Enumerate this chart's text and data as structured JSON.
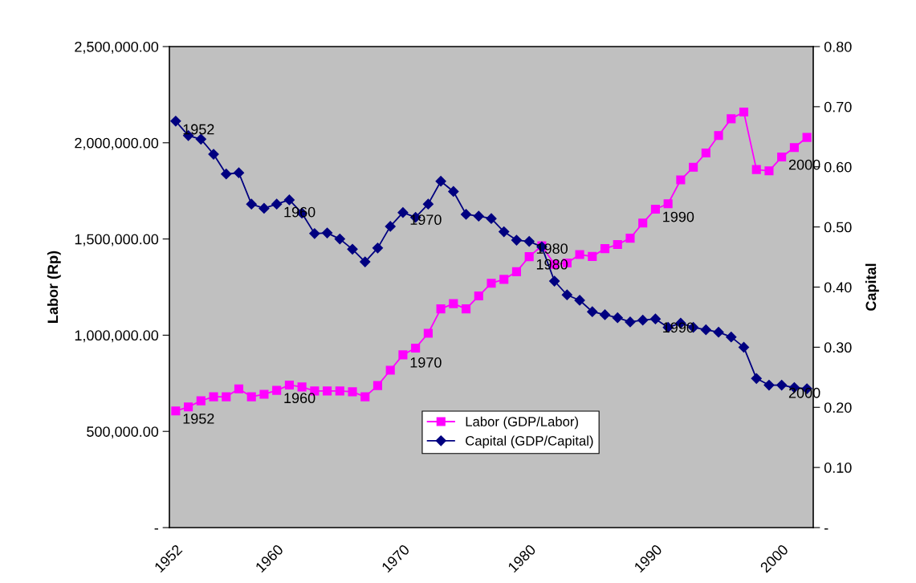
{
  "chart_data": {
    "type": "line",
    "categories": [
      "1952",
      null,
      null,
      null,
      null,
      null,
      null,
      null,
      "1960",
      null,
      null,
      null,
      null,
      null,
      null,
      null,
      null,
      null,
      "1970",
      null,
      null,
      null,
      null,
      null,
      null,
      null,
      null,
      null,
      "1980",
      null,
      null,
      null,
      null,
      null,
      null,
      null,
      null,
      null,
      "1990",
      null,
      null,
      null,
      null,
      null,
      null,
      null,
      null,
      null,
      "2000",
      null,
      null
    ],
    "ylabel": "Labor (Rp)",
    "y2label": "Capital",
    "ylim": [
      0,
      2500000
    ],
    "yticks": [
      {
        "value": 0,
        "label": "-"
      },
      {
        "value": 500000,
        "label": "500,000.00"
      },
      {
        "value": 1000000,
        "label": "1,000,000.00"
      },
      {
        "value": 1500000,
        "label": "1,500,000.00"
      },
      {
        "value": 2000000,
        "label": "2,000,000.00"
      },
      {
        "value": 2500000,
        "label": "2,500,000.00"
      }
    ],
    "y2lim": [
      0,
      0.8
    ],
    "y2ticks": [
      {
        "value": 0,
        "label": "-"
      },
      {
        "value": 0.1,
        "label": "0.10"
      },
      {
        "value": 0.2,
        "label": "0.20"
      },
      {
        "value": 0.3,
        "label": "0.30"
      },
      {
        "value": 0.4,
        "label": "0.40"
      },
      {
        "value": 0.5,
        "label": "0.50"
      },
      {
        "value": 0.6,
        "label": "0.60"
      },
      {
        "value": 0.7,
        "label": "0.70"
      },
      {
        "value": 0.8,
        "label": "0.80"
      }
    ],
    "grid": false,
    "legend": "bottom",
    "annotations": [
      {
        "text": "1952",
        "x": "1952",
        "y": 606000
      },
      {
        "text": "1960",
        "x": "1960",
        "y": 713000
      },
      {
        "text": "1970",
        "x": "1970",
        "y": 898000
      },
      {
        "text": "1980",
        "x": "1980",
        "y": 1408000
      },
      {
        "text": "1990",
        "x": "1990",
        "y": 1655000
      },
      {
        "text": "2000",
        "x": "2000",
        "y": 1926000
      },
      {
        "text": "1952",
        "x": "1952",
        "y": 2110000
      },
      {
        "text": "1960",
        "x": "1960",
        "y": 1680000
      },
      {
        "text": "1970",
        "x": "1970",
        "y": 1640000
      },
      {
        "text": "1980",
        "x": "1980",
        "y": 1490000
      },
      {
        "text": "1990",
        "x": "1990",
        "y": 1080000
      },
      {
        "text": "2000",
        "x": "2000",
        "y": 740000
      }
    ],
    "series": [
      {
        "name": "Labor (GDP/Labor)",
        "color": "#ff00ff",
        "marker": "square",
        "values": [
          606000,
          627000,
          659000,
          680000,
          680000,
          721000,
          680000,
          693000,
          713000,
          741000,
          731000,
          710000,
          710000,
          710000,
          706000,
          680000,
          738000,
          818000,
          898000,
          933000,
          1010000,
          1137000,
          1164000,
          1137000,
          1204000,
          1270000,
          1290000,
          1330000,
          1408000,
          1465000,
          1368000,
          1375000,
          1419000,
          1409000,
          1450000,
          1471000,
          1504000,
          1583000,
          1655000,
          1683000,
          1807000,
          1873000,
          1947000,
          2038000,
          2125000,
          2160000,
          1861000,
          1854000,
          1926000,
          1975000,
          2028000
        ]
      },
      {
        "name": "Capital (GDP/Capital)",
        "color": "#000080",
        "marker": "diamond",
        "axis": "y2",
        "values": [
          0.676,
          0.652,
          0.646,
          0.621,
          0.588,
          0.59,
          0.538,
          0.531,
          0.538,
          0.545,
          0.523,
          0.489,
          0.49,
          0.48,
          0.463,
          0.442,
          0.465,
          0.501,
          0.524,
          0.516,
          0.538,
          0.576,
          0.559,
          0.521,
          0.518,
          0.514,
          0.492,
          0.478,
          0.476,
          0.467,
          0.41,
          0.387,
          0.378,
          0.359,
          0.354,
          0.349,
          0.342,
          0.345,
          0.347,
          0.333,
          0.34,
          0.333,
          0.329,
          0.325,
          0.317,
          0.3,
          0.248,
          0.237,
          0.237,
          0.233,
          0.231
        ]
      }
    ]
  }
}
